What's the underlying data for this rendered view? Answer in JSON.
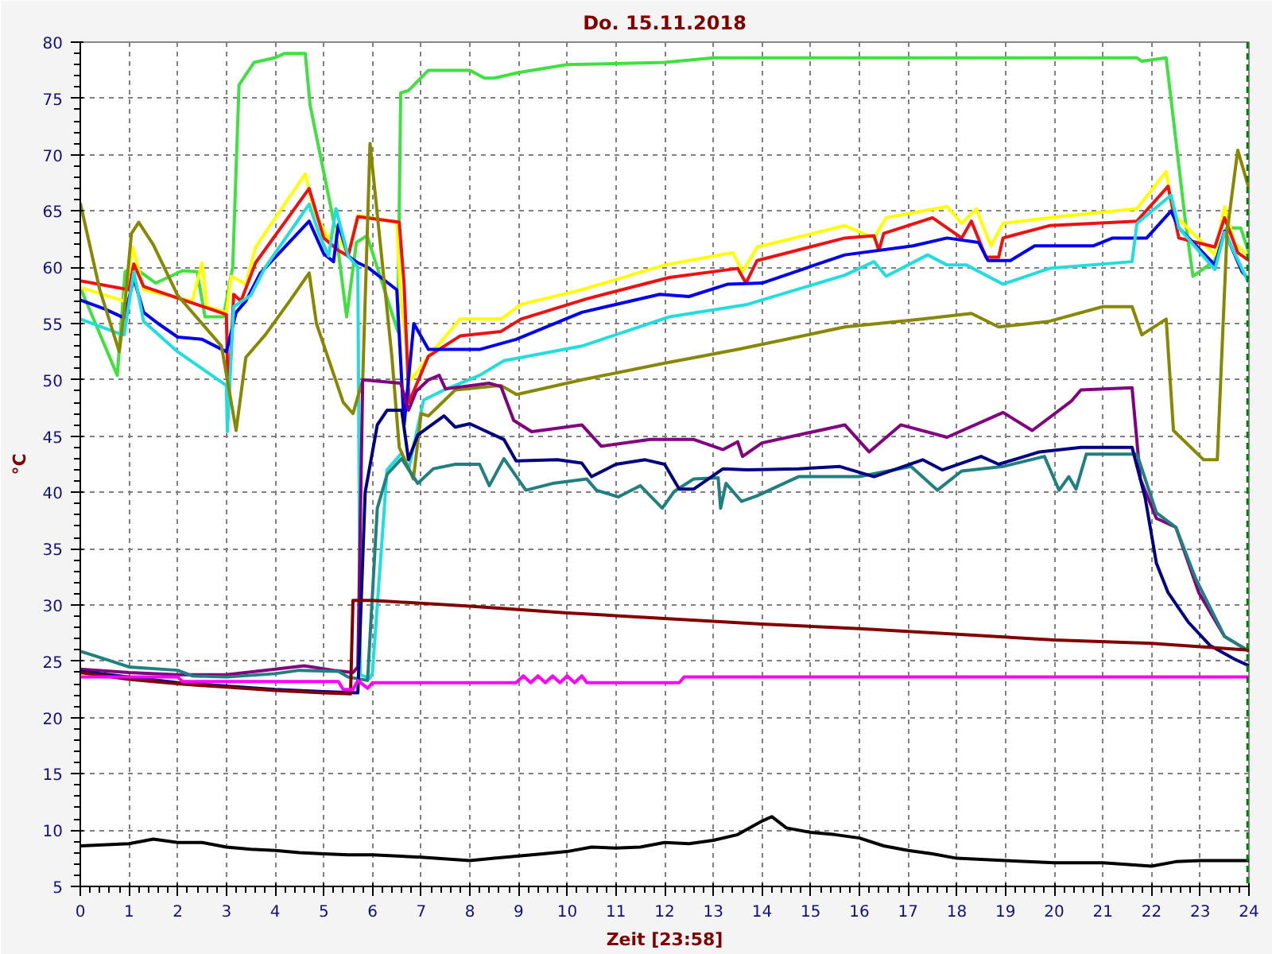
{
  "chart_data": {
    "type": "line",
    "title": "Do. 15.11.2018",
    "xlabel": "Zeit [23:58]",
    "ylabel": "°C",
    "xlim": [
      0,
      24
    ],
    "xticks": [
      0,
      1,
      2,
      3,
      4,
      5,
      6,
      7,
      8,
      9,
      10,
      11,
      12,
      13,
      14,
      15,
      16,
      17,
      18,
      19,
      20,
      21,
      22,
      23,
      24
    ],
    "ylim": [
      5,
      80
    ],
    "yticks": [
      5,
      10,
      15,
      20,
      25,
      30,
      35,
      40,
      45,
      50,
      55,
      60,
      65,
      70,
      75,
      80
    ],
    "grid": true,
    "marker": "none",
    "line_style": "solid",
    "ref_lines": [
      {
        "axis": "x",
        "value": 23.97,
        "color": "#008000",
        "line_style": "dashed"
      }
    ],
    "series": [
      {
        "color": "#40e040",
        "x": [
          0,
          0.76,
          0.92,
          1.1,
          1.55,
          2.1,
          2.4,
          2.56,
          2.94,
          3.13,
          3.26,
          3.57,
          3.99,
          4.2,
          4.62,
          4.72,
          5.03,
          5.25,
          5.47,
          5.67,
          5.89,
          6.52,
          6.58,
          6.74,
          7.15,
          8.0,
          8.3,
          8.5,
          9.0,
          10.0,
          12.0,
          13.0,
          14.0,
          16.0,
          18.0,
          20.0,
          21.7,
          21.8,
          22.3,
          22.7,
          22.85,
          23.3,
          23.54,
          23.83,
          24
        ],
        "values": [
          58.2,
          50.4,
          59.6,
          60,
          58.6,
          59.7,
          59.6,
          55.6,
          55.6,
          60,
          76.2,
          78.2,
          78.6,
          79,
          79,
          74.4,
          67.8,
          63.1,
          55.6,
          62.2,
          62.8,
          54.3,
          75.5,
          75.7,
          77.5,
          77.5,
          76.8,
          76.8,
          77.3,
          78,
          78.2,
          78.6,
          78.6,
          78.6,
          78.6,
          78.6,
          78.6,
          78.3,
          78.6,
          63.9,
          59.2,
          60.6,
          63.5,
          63.5,
          61.3
        ]
      },
      {
        "color": "#ffff00",
        "x": [
          0,
          0.9,
          1.08,
          1.3,
          2.3,
          2.5,
          2.6,
          3.0,
          3.1,
          3.4,
          3.6,
          4.62,
          4.8,
          5.1,
          5.2,
          5.5,
          5.7,
          6.5,
          6.58,
          6.8,
          7.15,
          7.8,
          8.64,
          9.05,
          10.3,
          12.0,
          13.4,
          13.6,
          13.9,
          15.7,
          16.3,
          16.55,
          17.8,
          18.1,
          18.4,
          18.7,
          18.95,
          20.1,
          21.7,
          22.3,
          22.44,
          23.3,
          23.5,
          23.7,
          24
        ],
        "values": [
          58.2,
          57,
          61.8,
          58,
          57,
          60.4,
          56.5,
          56,
          59.2,
          58.5,
          61.8,
          68.3,
          65,
          62.5,
          63.5,
          61,
          64.6,
          64,
          57,
          50,
          52.1,
          55.4,
          55.4,
          56.7,
          58,
          60.2,
          61.3,
          59.6,
          61.8,
          63.7,
          62.6,
          64.4,
          65.4,
          63.9,
          65.2,
          61.9,
          63.9,
          64.5,
          65.2,
          68.5,
          64.8,
          61.1,
          65.4,
          62.2,
          60.9
        ]
      },
      {
        "color": "#ee1111",
        "x": [
          0,
          1.0,
          1.1,
          1.3,
          3.0,
          3.04,
          3.15,
          3.3,
          3.6,
          4.7,
          5.0,
          5.3,
          5.5,
          5.7,
          6.55,
          6.65,
          6.75,
          7.15,
          7.8,
          8.64,
          9.05,
          10.4,
          12.1,
          13.5,
          13.67,
          13.9,
          15.7,
          16.3,
          16.4,
          16.5,
          17.5,
          18.1,
          18.3,
          18.6,
          18.86,
          18.95,
          19.9,
          21.7,
          22.34,
          22.56,
          23.3,
          23.5,
          23.77,
          24
        ],
        "values": [
          58.8,
          58,
          60.3,
          58.3,
          55.8,
          47.7,
          57.6,
          57,
          60.4,
          67,
          62.6,
          61.5,
          61,
          64.5,
          64,
          58.5,
          48,
          52.1,
          53.9,
          54.3,
          55.4,
          57.2,
          59.1,
          59.9,
          58.6,
          60.6,
          62.6,
          62.8,
          61.5,
          63,
          64.4,
          62.6,
          64.1,
          60.9,
          60.9,
          62.6,
          63.7,
          64.1,
          67.2,
          62.6,
          61.8,
          64.4,
          61.3,
          60.6
        ]
      },
      {
        "color": "#0000ee",
        "x": [
          0,
          0.5,
          0.9,
          1.1,
          1.3,
          1.6,
          2.0,
          2.5,
          3.0,
          3.2,
          3.4,
          3.7,
          4.7,
          5.0,
          5.2,
          5.3,
          5.5,
          5.7,
          5.9,
          6.5,
          6.65,
          6.85,
          7.15,
          8.2,
          8.95,
          10.3,
          11.9,
          12.5,
          13.3,
          14.0,
          15.7,
          17.1,
          17.8,
          18.45,
          18.64,
          19.1,
          19.6,
          20.8,
          21.2,
          21.9,
          22.4,
          22.56,
          23.3,
          23.5,
          23.86,
          24
        ],
        "values": [
          57.1,
          56.3,
          55.5,
          59,
          56,
          55,
          53.8,
          53.6,
          52.5,
          56,
          57,
          59.5,
          64.1,
          61.2,
          60.5,
          63.8,
          61,
          60.4,
          60,
          58,
          46,
          55,
          52.7,
          52.7,
          53.6,
          56,
          57.6,
          57.4,
          58.5,
          58.6,
          61.1,
          61.9,
          62.6,
          62.2,
          60.6,
          60.6,
          61.9,
          61.9,
          62.6,
          62.6,
          65,
          63.5,
          60.2,
          63.2,
          59.6,
          58.9
        ]
      },
      {
        "color": "#22dddd",
        "x": [
          0,
          0.8,
          0.9,
          1.1,
          1.3,
          2.0,
          2.5,
          3.0,
          3.02,
          3.15,
          3.5,
          3.8,
          4.7,
          4.9,
          5.1,
          5.25,
          5.5,
          5.7,
          5.75,
          5.95,
          6.0,
          6.3,
          6.6,
          6.74,
          7.05,
          7.47,
          8.2,
          8.7,
          10.3,
          12.1,
          13.7,
          15.7,
          16.3,
          16.55,
          17.4,
          17.8,
          18.2,
          18.95,
          19.9,
          21.6,
          21.7,
          22.4,
          22.56,
          23.3,
          23.5,
          24
        ],
        "values": [
          55.4,
          54.1,
          54,
          59.6,
          55.2,
          52.5,
          51,
          49.5,
          45.4,
          56.5,
          57.5,
          60,
          65.6,
          63,
          61,
          65.2,
          61,
          60,
          23.8,
          23.5,
          24,
          42,
          43.5,
          42,
          48.2,
          49.1,
          50.4,
          51.7,
          53,
          55.6,
          56.7,
          59.3,
          60.5,
          59.2,
          61.1,
          60.2,
          60.2,
          58.5,
          59.9,
          60.5,
          63.9,
          66.4,
          63.5,
          59.8,
          63.1,
          58.6
        ]
      },
      {
        "color": "#888800",
        "x": [
          0,
          0.4,
          0.8,
          0.9,
          1.05,
          1.2,
          1.5,
          2.0,
          2.5,
          2.9,
          3.2,
          3.4,
          3.8,
          4.3,
          4.7,
          4.85,
          5.4,
          5.6,
          5.8,
          5.9,
          5.95,
          6.4,
          6.55,
          6.84,
          7.0,
          7.15,
          7.7,
          8.64,
          8.96,
          10.3,
          11.9,
          13.5,
          14.5,
          15.7,
          17.3,
          18.3,
          18.86,
          19.9,
          21.0,
          21.6,
          21.8,
          22.3,
          22.45,
          23.07,
          23.35,
          23.55,
          23.77,
          24
        ],
        "values": [
          65.7,
          58,
          52.5,
          56,
          63,
          64,
          62,
          57.5,
          55,
          53,
          45.5,
          52,
          54,
          57,
          59.5,
          55,
          48,
          47,
          50,
          64,
          71,
          52,
          44,
          41.2,
          47,
          46.8,
          49.1,
          49.5,
          48.7,
          50,
          51.4,
          52.7,
          53.6,
          54.7,
          55.4,
          55.9,
          54.7,
          55.2,
          56.5,
          56.5,
          54,
          55.4,
          45.5,
          42.9,
          42.9,
          63.1,
          70.4,
          67
        ]
      },
      {
        "color": "#800080",
        "x": [
          0,
          1,
          2,
          3,
          4,
          4.6,
          5.2,
          5.6,
          5.7,
          5.8,
          6.58,
          6.74,
          6.9,
          7.15,
          7.37,
          7.5,
          8.4,
          8.64,
          8.9,
          9.27,
          10.3,
          10.7,
          11.7,
          12.6,
          13.2,
          13.5,
          13.6,
          14.0,
          15.7,
          16.2,
          16.85,
          17.8,
          18.95,
          19.55,
          20.35,
          20.55,
          21.6,
          21.77,
          22.1,
          22.5,
          22.97,
          23.5,
          24
        ],
        "values": [
          24.3,
          24,
          23.8,
          23.8,
          24.3,
          24.6,
          24.2,
          24,
          24.5,
          50,
          49.7,
          47.3,
          49,
          50,
          50.4,
          49.2,
          49.7,
          49.4,
          46.4,
          45.4,
          46,
          44.1,
          44.7,
          44.7,
          43.8,
          44.5,
          43.2,
          44.4,
          46,
          43.6,
          46,
          44.9,
          47.1,
          45.5,
          48.1,
          49.1,
          49.3,
          41.2,
          37.7,
          36.9,
          31.1,
          27.2,
          25.9
        ]
      },
      {
        "color": "#208080",
        "x": [
          0,
          0.5,
          1,
          2,
          2.3,
          3,
          4,
          4.5,
          5.3,
          5.5,
          5.9,
          6.1,
          6.3,
          6.6,
          6.93,
          7.25,
          7.7,
          8.2,
          8.4,
          8.7,
          9.15,
          9.7,
          10.4,
          10.6,
          11.05,
          11.5,
          11.95,
          12.2,
          12.6,
          13.1,
          13.15,
          13.26,
          13.58,
          13.9,
          14.75,
          16.0,
          17.06,
          17.6,
          18.1,
          18.95,
          19.8,
          20.1,
          20.3,
          20.45,
          20.66,
          21.7,
          22.1,
          22.5,
          22.9,
          23.5,
          24
        ],
        "values": [
          25.9,
          25.2,
          24.5,
          24.2,
          23.7,
          23.6,
          23.9,
          24.2,
          24.1,
          23.6,
          23.3,
          38.6,
          41.6,
          43,
          40.8,
          42.1,
          42.5,
          42.5,
          40.6,
          43,
          40.2,
          40.8,
          41.2,
          40.2,
          39.6,
          40.6,
          38.6,
          40.1,
          41.2,
          41.3,
          38.6,
          40.8,
          39.2,
          39.7,
          41.4,
          41.4,
          42.3,
          40.2,
          41.9,
          42.3,
          43.2,
          40.2,
          41.4,
          40.3,
          43.4,
          43.4,
          38.2,
          36.9,
          32.4,
          27.2,
          25.9
        ]
      },
      {
        "color": "#000080",
        "x": [
          0,
          2,
          3,
          4,
          5,
          5.7,
          5.85,
          6.1,
          6.3,
          6.6,
          6.74,
          6.93,
          7.47,
          7.7,
          8.0,
          8.7,
          8.95,
          9.8,
          10.3,
          10.5,
          11.0,
          11.6,
          12.0,
          12.3,
          12.6,
          13.2,
          13.7,
          14.75,
          15.6,
          16.3,
          17.3,
          17.7,
          18.5,
          18.86,
          19.7,
          20.55,
          21.6,
          21.87,
          22.1,
          22.34,
          22.75,
          23.2,
          23.7,
          24
        ],
        "values": [
          24.1,
          23.1,
          22.8,
          22.5,
          22.3,
          22.2,
          40,
          46,
          47.3,
          47.3,
          42.9,
          45.1,
          46.8,
          45.8,
          46.1,
          44.7,
          42.8,
          42.9,
          42.6,
          41.4,
          42.5,
          42.9,
          42.5,
          40.3,
          40.3,
          42.1,
          42,
          42.1,
          42.3,
          41.4,
          42.9,
          42,
          43.2,
          42.5,
          43.6,
          44,
          44,
          39.5,
          33.7,
          31.1,
          28.5,
          26.4,
          25.2,
          24.6
        ]
      },
      {
        "color": "#800000",
        "x": [
          0,
          1,
          2,
          3,
          4,
          5,
          5.55,
          5.6,
          6,
          8,
          10,
          12,
          14,
          16,
          18,
          20,
          22,
          23,
          24
        ],
        "values": [
          24,
          23.4,
          23,
          22.7,
          22.4,
          22.2,
          22.1,
          30.4,
          30.4,
          29.9,
          29.3,
          28.8,
          28.3,
          27.9,
          27.4,
          26.9,
          26.6,
          26.3,
          26
        ]
      },
      {
        "color": "#ff00ff",
        "x": [
          0,
          2.0,
          2.1,
          5.3,
          5.4,
          5.6,
          5.7,
          5.9,
          6.0,
          8.95,
          9.1,
          9.25,
          9.4,
          9.55,
          9.7,
          9.85,
          10.0,
          10.15,
          10.3,
          10.4,
          12.3,
          12.4,
          24
        ],
        "values": [
          23.6,
          23.6,
          23.2,
          23.2,
          22.5,
          22.5,
          23.3,
          22.6,
          23.1,
          23.1,
          23.7,
          23.1,
          23.7,
          23.1,
          23.7,
          23.1,
          23.7,
          23.1,
          23.7,
          23.1,
          23.1,
          23.6,
          23.6
        ]
      },
      {
        "color": "#000000",
        "x": [
          0,
          1,
          1.5,
          2,
          2.5,
          3,
          3.5,
          4,
          4.5,
          5,
          5.5,
          6,
          7,
          8,
          8.5,
          9,
          9.5,
          10,
          10.5,
          11,
          11.5,
          12,
          12.5,
          13,
          13.5,
          14,
          14.2,
          14.5,
          15,
          15.5,
          16,
          16.5,
          17,
          17.5,
          18,
          19,
          20,
          21,
          22,
          22.5,
          23,
          24
        ],
        "values": [
          8.6,
          8.8,
          9.2,
          8.9,
          8.9,
          8.5,
          8.3,
          8.2,
          8.0,
          7.9,
          7.8,
          7.8,
          7.6,
          7.3,
          7.5,
          7.7,
          7.9,
          8.1,
          8.5,
          8.4,
          8.5,
          8.9,
          8.8,
          9.1,
          9.6,
          10.8,
          11.2,
          10.2,
          9.8,
          9.6,
          9.3,
          8.6,
          8.2,
          7.9,
          7.5,
          7.3,
          7.1,
          7.1,
          6.8,
          7.2,
          7.3,
          7.3
        ]
      }
    ]
  }
}
